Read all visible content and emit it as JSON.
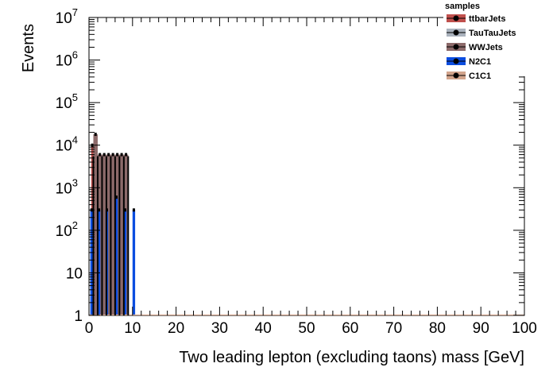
{
  "chart_data": {
    "type": "bar",
    "xlabel": "Two leading lepton (excluding taons) mass [GeV]",
    "ylabel": "Events",
    "xlim": [
      0,
      100
    ],
    "ylim": [
      1,
      10000000
    ],
    "yscale": "log",
    "grid": false,
    "legend_title": "samples",
    "legend_position": "top-right",
    "x_ticks": [
      "0",
      "10",
      "20",
      "30",
      "40",
      "50",
      "60",
      "70",
      "80",
      "90",
      "100"
    ],
    "y_ticks": [
      {
        "value": 1,
        "label": "1",
        "exp": ""
      },
      {
        "value": 10,
        "label": "10",
        "exp": ""
      },
      {
        "value": 100,
        "label": "10",
        "exp": "2"
      },
      {
        "value": 1000,
        "label": "10",
        "exp": "3"
      },
      {
        "value": 10000,
        "label": "10",
        "exp": "4"
      },
      {
        "value": 100000,
        "label": "10",
        "exp": "5"
      },
      {
        "value": 1000000,
        "label": "10",
        "exp": "6"
      },
      {
        "value": 10000000,
        "label": "10",
        "exp": "7"
      }
    ],
    "series": [
      {
        "name": "ttbarJets",
        "color": "#c0504d",
        "marker": "#000000",
        "bins": [
          [
            0.5,
            1.0,
            10000
          ],
          [
            1.5,
            2.0,
            4000
          ],
          [
            3.5,
            4.0,
            5000
          ],
          [
            5.5,
            6.0,
            5000
          ],
          [
            7.0,
            7.5,
            5000
          ],
          [
            8.5,
            9.0,
            5000
          ]
        ]
      },
      {
        "name": "TauTauJets",
        "color": "#aab2bd",
        "marker": "#000000",
        "bins": []
      },
      {
        "name": "WWJets",
        "color": "#8c6a6a",
        "marker": "#000000",
        "bins": [
          [
            1.0,
            2.0,
            18000
          ],
          [
            2.0,
            3.0,
            6000
          ],
          [
            3.0,
            4.0,
            6000
          ],
          [
            4.0,
            5.0,
            6000
          ],
          [
            5.0,
            6.0,
            6000
          ],
          [
            6.0,
            7.0,
            6000
          ],
          [
            7.0,
            8.0,
            6000
          ],
          [
            8.0,
            9.0,
            6000
          ]
        ]
      },
      {
        "name": "N2C1",
        "color": "#0b4de0",
        "marker": "#000000",
        "bins": [
          [
            0.3,
            0.9,
            300
          ],
          [
            2.0,
            2.6,
            300
          ],
          [
            3.8,
            4.4,
            300
          ],
          [
            6.0,
            6.6,
            600
          ],
          [
            8.0,
            8.6,
            300
          ],
          [
            10.0,
            10.6,
            300
          ]
        ]
      },
      {
        "name": "C1C1",
        "color": "#d2a48c",
        "marker": "#000000",
        "bins": [
          [
            0,
            100,
            1.05
          ]
        ]
      }
    ]
  }
}
